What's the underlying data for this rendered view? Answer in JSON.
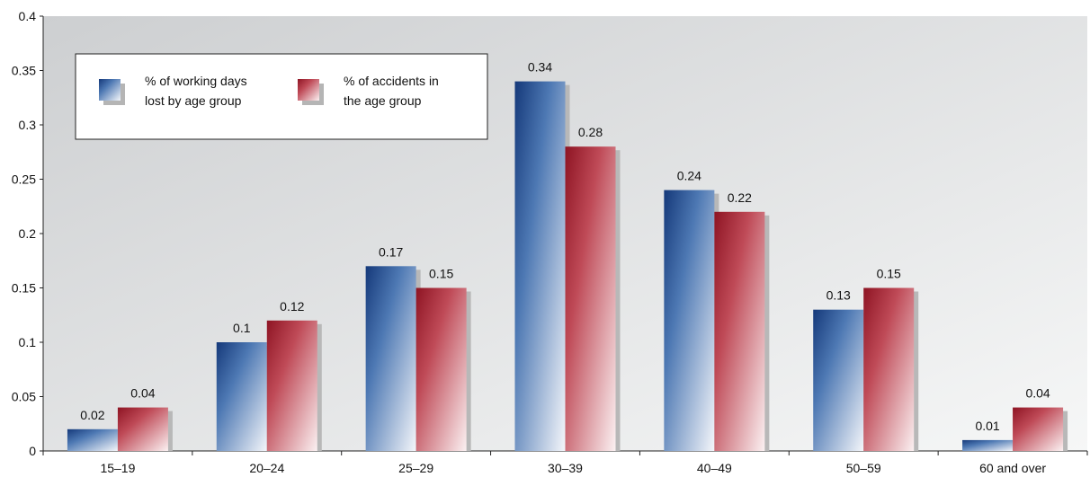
{
  "chart_data": {
    "type": "bar",
    "categories": [
      "15–19",
      "20–24",
      "25–29",
      "30–39",
      "40–49",
      "50–59",
      "60 and over"
    ],
    "series": [
      {
        "name": "% of working days lost by age group",
        "values": [
          0.02,
          0.1,
          0.17,
          0.34,
          0.24,
          0.13,
          0.01
        ],
        "value_labels": [
          "0.02",
          "0.1",
          "0.17",
          "0.34",
          "0.24",
          "0.13",
          "0.01"
        ],
        "color": "#1f4a8f"
      },
      {
        "name": "% of accidents in the age group",
        "values": [
          0.04,
          0.12,
          0.15,
          0.28,
          0.22,
          0.15,
          0.04
        ],
        "value_labels": [
          "0.04",
          "0.12",
          "0.15",
          "0.28",
          "0.22",
          "0.15",
          "0.04"
        ],
        "color": "#a3202e"
      }
    ],
    "legend": {
      "items": [
        {
          "line1": "% of working days",
          "line2": "lost by age group"
        },
        {
          "line1": "% of accidents in",
          "line2": "the age group"
        }
      ],
      "placement": "top-left"
    },
    "ylim": [
      0,
      0.4
    ],
    "yticks": [
      0,
      0.05,
      0.1,
      0.15,
      0.2,
      0.25,
      0.3,
      0.35,
      0.4
    ],
    "ytick_labels": [
      "0",
      "0.05",
      "0.1",
      "0.15",
      "0.2",
      "0.25",
      "0.3",
      "0.35",
      "0.4"
    ],
    "grid": false,
    "title": "",
    "xlabel": "",
    "ylabel": ""
  }
}
